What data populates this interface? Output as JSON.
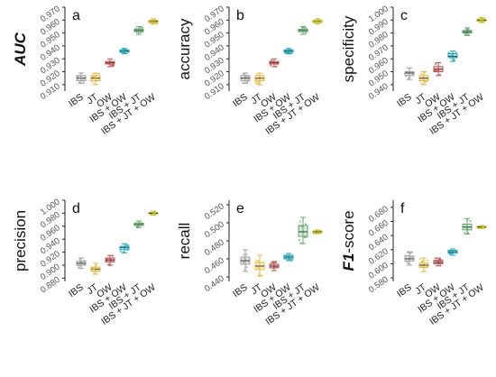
{
  "colors": {
    "IBS": "#9e9e9e",
    "JT": "#e8b83a",
    "OW": "#c0504d",
    "IBS + OW": "#1aa6b7",
    "IBS + JT": "#5fa86a",
    "IBS + JT + OW": "#c8c02a"
  },
  "chart_data": [
    {
      "type": "box",
      "panel": "a",
      "ylabel": "AUC",
      "ylabel_style": "bold-italic",
      "categories": [
        "IBS",
        "JT",
        "OW",
        "IBS + OW",
        "IBS + JT",
        "IBS + JT + OW"
      ],
      "ylim": [
        0.905,
        0.97
      ],
      "yticks": [
        0.91,
        0.92,
        0.93,
        0.94,
        0.95,
        0.96,
        0.97
      ],
      "ytick_labels": [
        "0.910",
        "0.920",
        "0.930",
        "0.940",
        "0.950",
        "0.960",
        "0.970"
      ],
      "series": [
        {
          "category": "IBS",
          "median": 0.915,
          "q1": 0.913,
          "q3": 0.917,
          "min": 0.911,
          "max": 0.919
        },
        {
          "category": "JT",
          "median": 0.915,
          "q1": 0.913,
          "q3": 0.917,
          "min": 0.91,
          "max": 0.919
        },
        {
          "category": "OW",
          "median": 0.927,
          "q1": 0.926,
          "q3": 0.928,
          "min": 0.924,
          "max": 0.93
        },
        {
          "category": "IBS + OW",
          "median": 0.936,
          "q1": 0.935,
          "q3": 0.937,
          "min": 0.934,
          "max": 0.938
        },
        {
          "category": "IBS + JT",
          "median": 0.952,
          "q1": 0.951,
          "q3": 0.953,
          "min": 0.949,
          "max": 0.955
        },
        {
          "category": "IBS + JT + OW",
          "median": 0.959,
          "q1": 0.958,
          "q3": 0.96,
          "min": 0.957,
          "max": 0.961
        }
      ]
    },
    {
      "type": "box",
      "panel": "b",
      "ylabel": "accuracy",
      "ylabel_style": "normal",
      "categories": [
        "IBS",
        "JT",
        "OW",
        "IBS + OW",
        "IBS + JT",
        "IBS + JT + OW"
      ],
      "ylim": [
        0.905,
        0.97
      ],
      "yticks": [
        0.91,
        0.92,
        0.93,
        0.94,
        0.95,
        0.96,
        0.97
      ],
      "ytick_labels": [
        "0.910",
        "0.920",
        "0.930",
        "0.940",
        "0.950",
        "0.960",
        "0.970"
      ],
      "series": [
        {
          "category": "IBS",
          "median": 0.915,
          "q1": 0.913,
          "q3": 0.917,
          "min": 0.911,
          "max": 0.919
        },
        {
          "category": "JT",
          "median": 0.915,
          "q1": 0.913,
          "q3": 0.917,
          "min": 0.91,
          "max": 0.919
        },
        {
          "category": "OW",
          "median": 0.927,
          "q1": 0.926,
          "q3": 0.928,
          "min": 0.924,
          "max": 0.93
        },
        {
          "category": "IBS + OW",
          "median": 0.936,
          "q1": 0.935,
          "q3": 0.937,
          "min": 0.934,
          "max": 0.938
        },
        {
          "category": "IBS + JT",
          "median": 0.952,
          "q1": 0.951,
          "q3": 0.953,
          "min": 0.949,
          "max": 0.955
        },
        {
          "category": "IBS + JT + OW",
          "median": 0.959,
          "q1": 0.958,
          "q3": 0.96,
          "min": 0.957,
          "max": 0.961
        }
      ]
    },
    {
      "type": "box",
      "panel": "c",
      "ylabel": "specificity",
      "ylabel_style": "normal",
      "categories": [
        "IBS",
        "JT",
        "OW",
        "IBS + OW",
        "IBS + JT",
        "IBS + JT + OW"
      ],
      "ylim": [
        0.935,
        1.0
      ],
      "yticks": [
        0.94,
        0.95,
        0.96,
        0.97,
        0.98,
        0.99,
        1.0
      ],
      "ytick_labels": [
        "0.940",
        "0.950",
        "0.960",
        "0.970",
        "0.980",
        "0.990",
        "1.000"
      ],
      "series": [
        {
          "category": "IBS",
          "median": 0.949,
          "q1": 0.947,
          "q3": 0.95,
          "min": 0.944,
          "max": 0.953
        },
        {
          "category": "JT",
          "median": 0.945,
          "q1": 0.943,
          "q3": 0.947,
          "min": 0.94,
          "max": 0.95
        },
        {
          "category": "OW",
          "median": 0.952,
          "q1": 0.95,
          "q3": 0.954,
          "min": 0.947,
          "max": 0.957
        },
        {
          "category": "IBS + OW",
          "median": 0.962,
          "q1": 0.961,
          "q3": 0.964,
          "min": 0.958,
          "max": 0.966
        },
        {
          "category": "IBS + JT",
          "median": 0.981,
          "q1": 0.98,
          "q3": 0.982,
          "min": 0.978,
          "max": 0.984
        },
        {
          "category": "IBS + JT + OW",
          "median": 0.99,
          "q1": 0.989,
          "q3": 0.991,
          "min": 0.988,
          "max": 0.992
        }
      ]
    },
    {
      "type": "box",
      "panel": "d",
      "ylabel": "precision",
      "ylabel_style": "normal",
      "categories": [
        "IBS",
        "JT",
        "OW",
        "IBS + OW",
        "IBS + JT",
        "IBS + JT + OW"
      ],
      "ylim": [
        0.875,
        1.0
      ],
      "yticks": [
        0.88,
        0.9,
        0.92,
        0.94,
        0.96,
        0.98,
        1.0
      ],
      "ytick_labels": [
        "0.880",
        "0.900",
        "0.920",
        "0.940",
        "0.960",
        "0.980",
        "1.000"
      ],
      "series": [
        {
          "category": "IBS",
          "median": 0.903,
          "q1": 0.9,
          "q3": 0.906,
          "min": 0.895,
          "max": 0.911
        },
        {
          "category": "JT",
          "median": 0.894,
          "q1": 0.891,
          "q3": 0.897,
          "min": 0.886,
          "max": 0.903
        },
        {
          "category": "OW",
          "median": 0.908,
          "q1": 0.905,
          "q3": 0.911,
          "min": 0.9,
          "max": 0.915
        },
        {
          "category": "IBS + OW",
          "median": 0.927,
          "q1": 0.924,
          "q3": 0.929,
          "min": 0.919,
          "max": 0.933
        },
        {
          "category": "IBS + JT",
          "median": 0.963,
          "q1": 0.961,
          "q3": 0.965,
          "min": 0.958,
          "max": 0.968
        },
        {
          "category": "IBS + JT + OW",
          "median": 0.98,
          "q1": 0.979,
          "q3": 0.981,
          "min": 0.977,
          "max": 0.983
        }
      ]
    },
    {
      "type": "box",
      "panel": "e",
      "ylabel": "recall",
      "ylabel_style": "normal",
      "categories": [
        "IBS",
        "JT",
        "OW",
        "IBS + OW",
        "IBS + JT",
        "IBS + JT + OW"
      ],
      "ylim": [
        0.435,
        0.525
      ],
      "yticks": [
        0.44,
        0.46,
        0.48,
        0.5,
        0.52
      ],
      "ytick_labels": [
        "0.440",
        "0.460",
        "0.480",
        "0.500",
        "0.520"
      ],
      "series": [
        {
          "category": "IBS",
          "median": 0.458,
          "q1": 0.454,
          "q3": 0.462,
          "min": 0.446,
          "max": 0.47
        },
        {
          "category": "JT",
          "median": 0.452,
          "q1": 0.448,
          "q3": 0.456,
          "min": 0.441,
          "max": 0.464
        },
        {
          "category": "OW",
          "median": 0.452,
          "q1": 0.45,
          "q3": 0.454,
          "min": 0.447,
          "max": 0.457
        },
        {
          "category": "IBS + OW",
          "median": 0.462,
          "q1": 0.46,
          "q3": 0.464,
          "min": 0.458,
          "max": 0.466
        },
        {
          "category": "IBS + JT",
          "median": 0.49,
          "q1": 0.485,
          "q3": 0.497,
          "min": 0.477,
          "max": 0.506
        },
        {
          "category": "IBS + JT + OW",
          "median": 0.49,
          "q1": 0.489,
          "q3": 0.491,
          "min": 0.488,
          "max": 0.492
        }
      ]
    },
    {
      "type": "box",
      "panel": "f",
      "ylabel": "F1-score",
      "ylabel_italic_part": "F1",
      "ylabel_rest": "-score",
      "ylabel_style": "bold-italic-prefix",
      "categories": [
        "IBS",
        "JT",
        "OW",
        "IBS + OW",
        "IBS + JT",
        "IBS + JT + OW"
      ],
      "ylim": [
        0.575,
        0.69
      ],
      "yticks": [
        0.58,
        0.6,
        0.62,
        0.64,
        0.66,
        0.68
      ],
      "ytick_labels": [
        "0.580",
        "0.600",
        "0.620",
        "0.640",
        "0.660",
        "0.680"
      ],
      "series": [
        {
          "category": "IBS",
          "median": 0.607,
          "q1": 0.604,
          "q3": 0.611,
          "min": 0.598,
          "max": 0.617
        },
        {
          "category": "JT",
          "median": 0.598,
          "q1": 0.595,
          "q3": 0.601,
          "min": 0.589,
          "max": 0.608
        },
        {
          "category": "OW",
          "median": 0.602,
          "q1": 0.6,
          "q3": 0.605,
          "min": 0.597,
          "max": 0.608
        },
        {
          "category": "IBS + OW",
          "median": 0.617,
          "q1": 0.615,
          "q3": 0.619,
          "min": 0.612,
          "max": 0.621
        },
        {
          "category": "IBS + JT",
          "median": 0.652,
          "q1": 0.648,
          "q3": 0.656,
          "min": 0.642,
          "max": 0.664
        },
        {
          "category": "IBS + JT + OW",
          "median": 0.652,
          "q1": 0.651,
          "q3": 0.653,
          "min": 0.65,
          "max": 0.654
        }
      ]
    }
  ]
}
